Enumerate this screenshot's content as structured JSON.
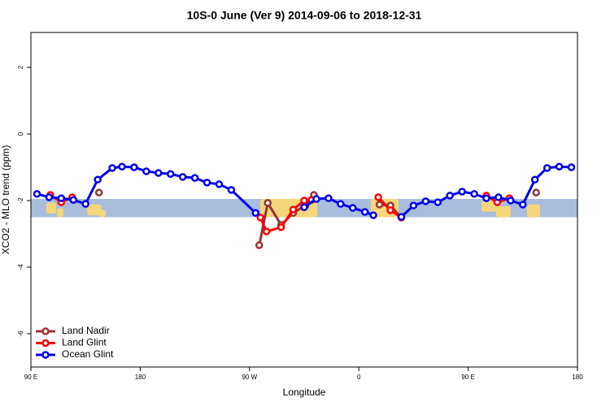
{
  "chart_data": {
    "type": "line",
    "title": "10S-0 June (Ver 9)   2014-09-06 to 2018-12-31",
    "x_label": "Longitude",
    "y_label": "XCO2 - MLO trend (ppm)",
    "xlim": [
      90,
      540
    ],
    "xticks": [
      {
        "value": 90,
        "label": "90 E"
      },
      180,
      {
        "value": 270,
        "label": "90 W"
      },
      {
        "value": 360,
        "label": "0"
      },
      {
        "value": 450,
        "label": "90 E"
      },
      {
        "value": 540,
        "label": "180"
      }
    ],
    "ylim": [
      -7,
      3.05
    ],
    "yticks": [
      -6,
      -4,
      -2,
      0,
      2
    ],
    "band": [
      -2.5,
      -1.95
    ],
    "band_color": "#a8bedc",
    "legend": "bottom-left",
    "series": [
      {
        "name": "Land Nadir",
        "color": "#993333",
        "x": [
          146,
          null,
          278,
          285,
          296,
          306,
          316,
          323,
          null,
          377,
          386,
          395,
          null,
          506
        ],
        "values": [
          -1.76,
          null,
          -3.34,
          -2.07,
          -2.73,
          -2.37,
          -2.15,
          -1.83,
          null,
          -2.12,
          -2.15,
          -2.51,
          null,
          -1.76
        ]
      },
      {
        "name": "Land Glint",
        "color": "#ff0000",
        "x": [
          106,
          115,
          124,
          null,
          279,
          284,
          296,
          306,
          315,
          321,
          null,
          376,
          386,
          395,
          null,
          465,
          474,
          484
        ],
        "values": [
          -1.83,
          -2.05,
          -1.9,
          null,
          -2.51,
          -2.93,
          -2.8,
          -2.27,
          -2.0,
          -1.98,
          null,
          -1.9,
          -2.29,
          -2.51,
          null,
          -1.85,
          -2.05,
          -1.93
        ]
      },
      {
        "name": "Ocean Glint",
        "color": "#0000ee",
        "x": [
          95,
          105,
          115,
          125,
          135,
          145,
          157,
          165,
          175,
          185,
          195,
          205,
          215,
          225,
          235,
          245,
          255,
          275,
          null,
          315,
          325,
          335,
          345,
          355,
          365,
          372,
          null,
          395,
          405,
          415,
          425,
          435,
          445,
          455,
          465,
          475,
          485,
          495,
          505,
          515,
          525,
          535
        ],
        "values": [
          -1.8,
          -1.9,
          -1.93,
          -1.98,
          -2.1,
          -1.37,
          -1.02,
          -0.98,
          -1.0,
          -1.12,
          -1.17,
          -1.2,
          -1.29,
          -1.32,
          -1.46,
          -1.51,
          -1.68,
          -2.37,
          null,
          -2.2,
          -1.95,
          -1.93,
          -2.1,
          -2.22,
          -2.34,
          -2.44,
          null,
          -2.49,
          -2.15,
          -2.02,
          -2.05,
          -1.85,
          -1.73,
          -1.8,
          -1.93,
          -1.9,
          -2.0,
          -2.12,
          -1.37,
          -1.02,
          -0.98,
          -1.0
        ]
      }
    ]
  }
}
